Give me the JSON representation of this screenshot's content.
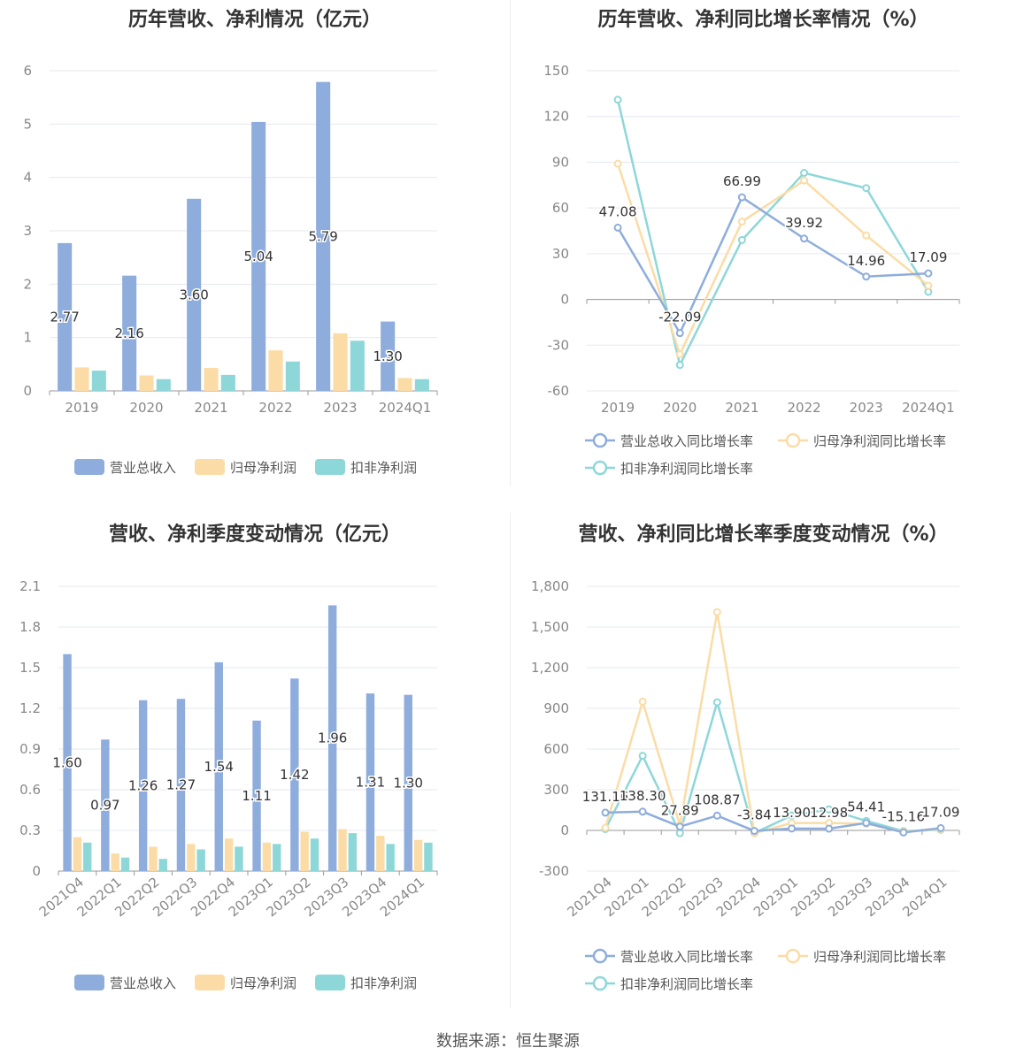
{
  "colors": {
    "revenue": "#8eaddc",
    "parent_profit": "#fbdca6",
    "deducted_profit": "#8ed7d9",
    "title": "#333333",
    "axis_text": "#888888",
    "grid": "#e6e8f0"
  },
  "source_text": "数据来源：恒生聚源",
  "chart_data": [
    {
      "type": "bar",
      "title": "历年营收、净利情况（亿元）",
      "categories": [
        "2019",
        "2020",
        "2021",
        "2022",
        "2023",
        "2024Q1"
      ],
      "ylim": [
        0,
        6
      ],
      "yticks": [
        "0",
        "1",
        "2",
        "3",
        "4",
        "5",
        "6"
      ],
      "series": [
        {
          "name": "营业总收入",
          "values": [
            2.77,
            2.16,
            3.6,
            5.04,
            5.79,
            1.3
          ],
          "labels": [
            "2.77",
            "2.16",
            "3.60",
            "5.04",
            "5.79",
            "1.30"
          ]
        },
        {
          "name": "归母净利润",
          "values": [
            0.44,
            0.29,
            0.43,
            0.76,
            1.08,
            0.24
          ]
        },
        {
          "name": "扣非净利润",
          "values": [
            0.38,
            0.22,
            0.3,
            0.55,
            0.94,
            0.22
          ]
        }
      ],
      "legend": "bottom"
    },
    {
      "type": "line",
      "title": "历年营收、净利同比增长率情况（%）",
      "categories": [
        "2019",
        "2020",
        "2021",
        "2022",
        "2023",
        "2024Q1"
      ],
      "ylim": [
        -60,
        150
      ],
      "yticks": [
        "-60",
        "-30",
        "0",
        "30",
        "60",
        "90",
        "120",
        "150"
      ],
      "series": [
        {
          "name": "营业总收入同比增长率",
          "values": [
            47.08,
            -22.09,
            66.99,
            39.92,
            14.96,
            17.09
          ],
          "labels": [
            "47.08",
            "-22.09",
            "66.99",
            "39.92",
            "14.96",
            "17.09"
          ]
        },
        {
          "name": "归母净利润同比增长率",
          "values": [
            89,
            -36,
            51,
            78,
            42,
            9
          ]
        },
        {
          "name": "扣非净利润同比增长率",
          "values": [
            131,
            -43,
            39,
            83,
            73,
            5
          ]
        }
      ],
      "legend": "bottom"
    },
    {
      "type": "bar",
      "title": "营收、净利季度变动情况（亿元）",
      "categories": [
        "2021Q4",
        "2022Q1",
        "2022Q2",
        "2022Q3",
        "2022Q4",
        "2023Q1",
        "2023Q2",
        "2023Q3",
        "2023Q4",
        "2024Q1"
      ],
      "ylim": [
        0,
        2.1
      ],
      "yticks": [
        "0",
        "0.3",
        "0.6",
        "0.9",
        "1.2",
        "1.5",
        "1.8",
        "2.1"
      ],
      "series": [
        {
          "name": "营业总收入",
          "values": [
            1.6,
            0.97,
            1.26,
            1.27,
            1.54,
            1.11,
            1.42,
            1.96,
            1.31,
            1.3
          ],
          "labels": [
            "1.60",
            "0.97",
            "1.26",
            "1.27",
            "1.54",
            "1.11",
            "1.42",
            "1.96",
            "1.31",
            "1.30"
          ]
        },
        {
          "name": "归母净利润",
          "values": [
            0.25,
            0.13,
            0.18,
            0.2,
            0.24,
            0.21,
            0.29,
            0.31,
            0.26,
            0.23
          ]
        },
        {
          "name": "扣非净利润",
          "values": [
            0.21,
            0.1,
            0.09,
            0.16,
            0.18,
            0.2,
            0.24,
            0.28,
            0.2,
            0.21
          ]
        }
      ],
      "legend": "bottom"
    },
    {
      "type": "line",
      "title": "营收、净利同比增长率季度变动情况（%）",
      "categories": [
        "2021Q4",
        "2022Q1",
        "2022Q2",
        "2022Q3",
        "2022Q4",
        "2023Q1",
        "2023Q2",
        "2023Q3",
        "2023Q4",
        "2024Q1"
      ],
      "ylim": [
        -300,
        1800
      ],
      "yticks": [
        "-300",
        "0",
        "300",
        "600",
        "900",
        "1,200",
        "1,500",
        "1,800"
      ],
      "series": [
        {
          "name": "营业总收入同比增长率",
          "values": [
            131.16,
            138.3,
            27.89,
            108.87,
            -3.84,
            13.9,
            12.98,
            54.41,
            -15.16,
            17.09
          ],
          "labels": [
            "131.16",
            "138.30",
            "27.89",
            "108.87",
            "-3.84",
            "13.90",
            "12.98",
            "54.41",
            "-15.16",
            "17.09"
          ]
        },
        {
          "name": "归母净利润同比增长率",
          "values": [
            20,
            950,
            40,
            1610,
            -20,
            55,
            55,
            50,
            -10,
            10
          ]
        },
        {
          "name": "扣非净利润同比增长率",
          "values": [
            10,
            550,
            -20,
            945,
            -20,
            110,
            155,
            70,
            -5,
            5
          ]
        }
      ],
      "legend": "bottom"
    }
  ]
}
